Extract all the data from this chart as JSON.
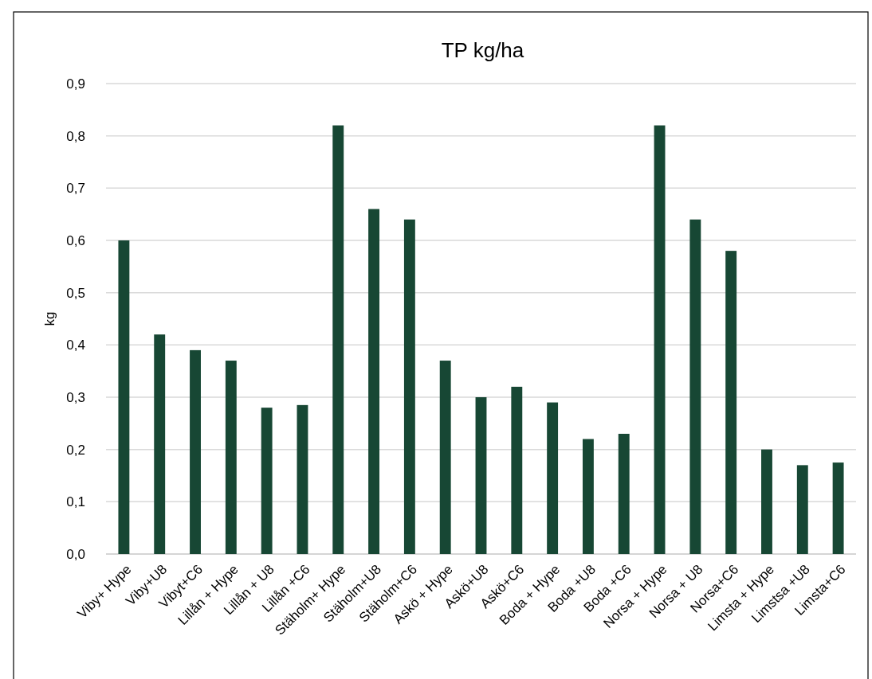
{
  "chart_data": {
    "type": "bar",
    "title": "TP kg/ha",
    "ylabel": "kg",
    "categories": [
      "Viby+ Hype",
      "Viby+U8",
      "Vibyt+C6",
      "Lillån + Hype",
      "Lillån + U8",
      "Lillån +C6",
      "Stäholm+ Hype",
      "Stäholm+U8",
      "Stäholm+C6",
      "Askö + Hype",
      "Askö+U8",
      "Askö+C6",
      "Boda + Hype",
      "Boda +U8",
      "Boda +C6",
      "Norsa + Hype",
      "Norsa + U8",
      "Norsa+C6",
      "Limsta + Hype",
      "Limstsa +U8",
      "Limsta+C6"
    ],
    "values": [
      0.6,
      0.42,
      0.39,
      0.37,
      0.28,
      0.285,
      0.82,
      0.66,
      0.64,
      0.37,
      0.3,
      0.32,
      0.29,
      0.22,
      0.23,
      0.82,
      0.64,
      0.58,
      0.2,
      0.17,
      0.175
    ],
    "color": "#174734",
    "ylim": [
      0,
      0.9
    ],
    "yticks": [
      {
        "value": 0,
        "label": "0,0"
      },
      {
        "value": 0.1,
        "label": "0,1"
      },
      {
        "value": 0.2,
        "label": "0,2"
      },
      {
        "value": 0.3,
        "label": "0,3"
      },
      {
        "value": 0.4,
        "label": "0,4"
      },
      {
        "value": 0.5,
        "label": "0,5"
      },
      {
        "value": 0.6,
        "label": "0,6"
      },
      {
        "value": 0.7,
        "label": "0,7"
      },
      {
        "value": 0.8,
        "label": "0,8"
      },
      {
        "value": 0.9,
        "label": "0,9"
      }
    ],
    "grid": "y"
  }
}
